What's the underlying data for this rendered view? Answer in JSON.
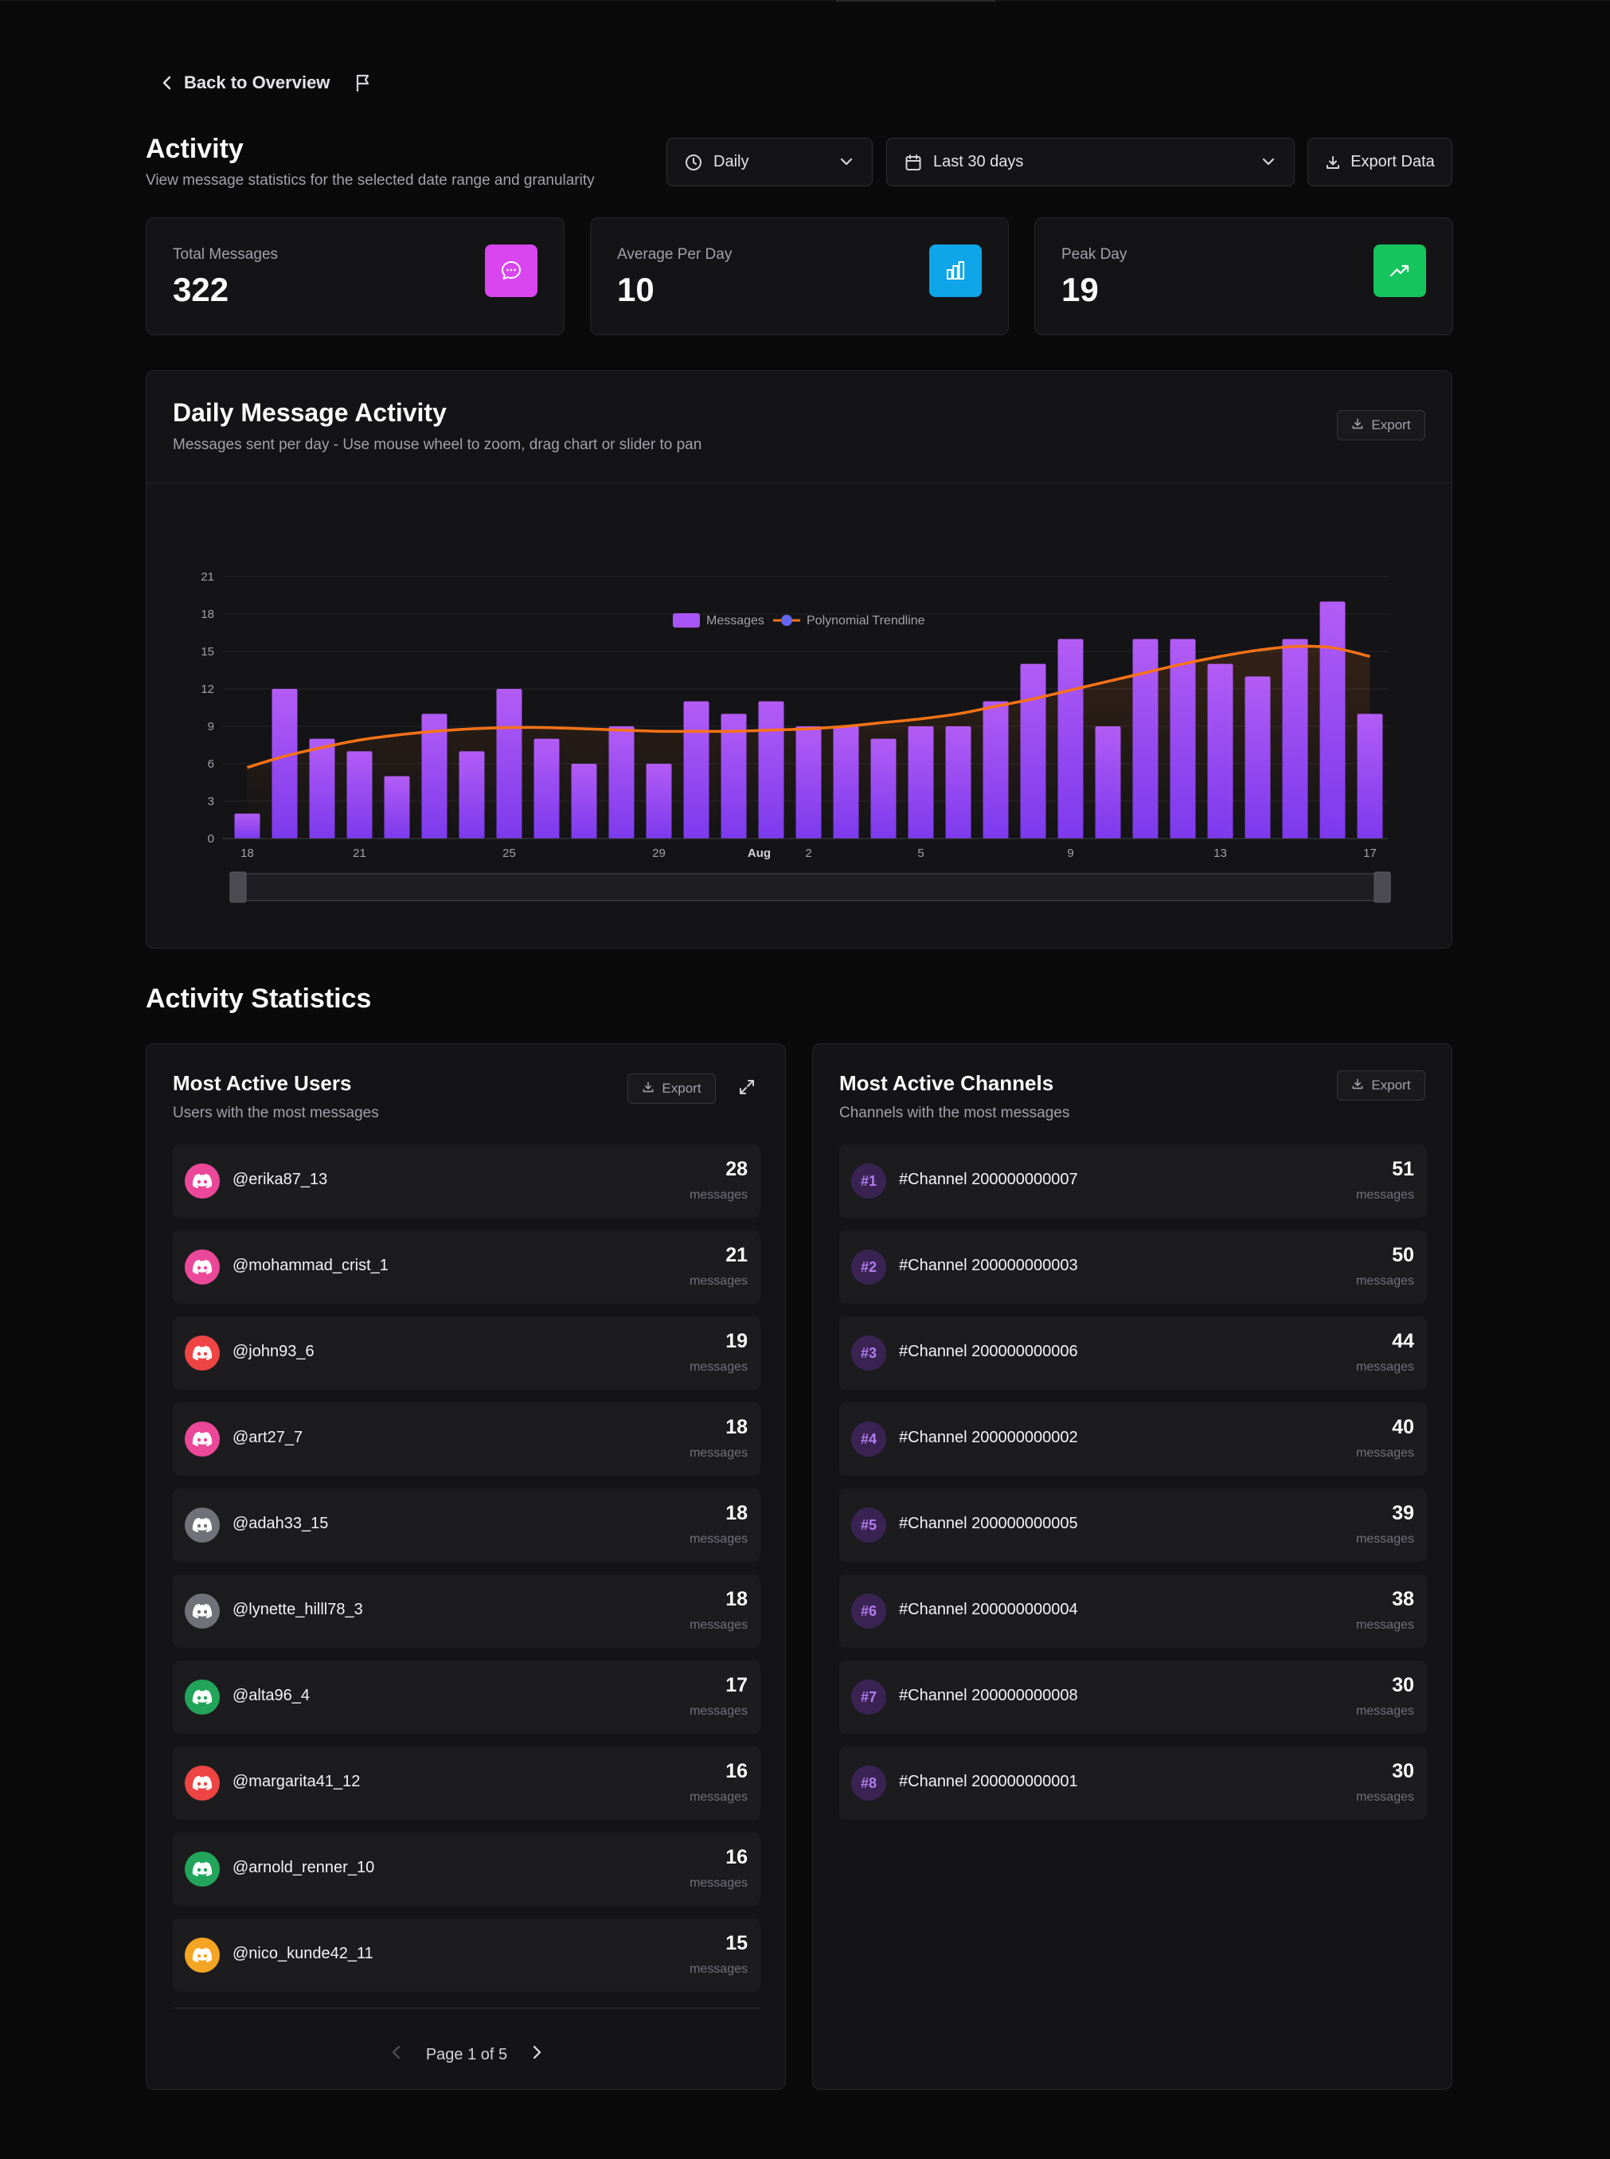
{
  "nav": {
    "back_label": "Back to Overview"
  },
  "header": {
    "title": "Activity",
    "subtitle": "View message statistics for the selected date range and granularity",
    "granularity": "Daily",
    "range": "Last 30 days",
    "export_label": "Export Data"
  },
  "stats": [
    {
      "label": "Total Messages",
      "value": "322",
      "icon": "message-icon",
      "color": "#d946ef"
    },
    {
      "label": "Average Per Day",
      "value": "10",
      "icon": "bar-chart-icon",
      "color": "#0ea5e9"
    },
    {
      "label": "Peak Day",
      "value": "19",
      "icon": "trending-up-icon",
      "color": "#16c45e"
    }
  ],
  "chart_card": {
    "title": "Daily Message Activity",
    "subtitle": "Messages sent per day - Use mouse wheel to zoom, drag chart or slider to pan",
    "export_label": "Export"
  },
  "chart_data": {
    "type": "bar",
    "categories": [
      "18",
      "19",
      "20",
      "21",
      "22",
      "23",
      "24",
      "25",
      "26",
      "27",
      "28",
      "29",
      "30",
      "31",
      "Aug",
      "2",
      "3",
      "4",
      "5",
      "6",
      "7",
      "8",
      "9",
      "10",
      "11",
      "12",
      "13",
      "14",
      "15",
      "16",
      "17"
    ],
    "tick_labels": [
      "18",
      "21",
      "25",
      "29",
      "Aug",
      "2",
      "5",
      "9",
      "13",
      "17"
    ],
    "series": [
      {
        "name": "Messages",
        "type": "bar",
        "color": "#a855f7",
        "values": [
          2,
          12,
          8,
          7,
          5,
          10,
          7,
          12,
          8,
          6,
          9,
          6,
          11,
          10,
          11,
          9,
          9,
          8,
          9,
          9,
          11,
          14,
          16,
          9,
          16,
          16,
          14,
          13,
          16,
          19,
          10
        ]
      },
      {
        "name": "Polynomial Trendline",
        "type": "line",
        "color": "#f97316",
        "values": [
          5.7,
          6.6,
          7.3,
          7.9,
          8.3,
          8.6,
          8.8,
          8.9,
          8.9,
          8.8,
          8.7,
          8.6,
          8.6,
          8.6,
          8.7,
          8.8,
          9.0,
          9.3,
          9.6,
          10.0,
          10.6,
          11.2,
          11.9,
          12.6,
          13.3,
          14.0,
          14.6,
          15.1,
          15.4,
          15.3,
          14.6
        ]
      }
    ],
    "ylim": [
      0,
      21
    ],
    "yticks": [
      0,
      3,
      6,
      9,
      12,
      15,
      18,
      21
    ],
    "legend": "top-center",
    "grid": true
  },
  "stats_section": {
    "title": "Activity Statistics"
  },
  "users_panel": {
    "title": "Most Active Users",
    "subtitle": "Users with the most messages",
    "export_label": "Export",
    "unit": "messages",
    "pager": "Page 1 of 5",
    "items": [
      {
        "name": "@erika87_13",
        "count": "28",
        "color": "#ec4899"
      },
      {
        "name": "@mohammad_crist_1",
        "count": "21",
        "color": "#ec4899"
      },
      {
        "name": "@john93_6",
        "count": "19",
        "color": "#ef4444"
      },
      {
        "name": "@art27_7",
        "count": "18",
        "color": "#ec4899"
      },
      {
        "name": "@adah33_15",
        "count": "18",
        "color": "#71717a"
      },
      {
        "name": "@lynette_hilll78_3",
        "count": "18",
        "color": "#71717a"
      },
      {
        "name": "@alta96_4",
        "count": "17",
        "color": "#22a55a"
      },
      {
        "name": "@margarita41_12",
        "count": "16",
        "color": "#ef4444"
      },
      {
        "name": "@arnold_renner_10",
        "count": "16",
        "color": "#22a55a"
      },
      {
        "name": "@nico_kunde42_11",
        "count": "15",
        "color": "#f5a524"
      }
    ]
  },
  "channels_panel": {
    "title": "Most Active Channels",
    "subtitle": "Channels with the most messages",
    "export_label": "Export",
    "unit": "messages",
    "items": [
      {
        "rank": "#1",
        "name": "#Channel 200000000007",
        "count": "51"
      },
      {
        "rank": "#2",
        "name": "#Channel 200000000003",
        "count": "50"
      },
      {
        "rank": "#3",
        "name": "#Channel 200000000006",
        "count": "44"
      },
      {
        "rank": "#4",
        "name": "#Channel 200000000002",
        "count": "40"
      },
      {
        "rank": "#5",
        "name": "#Channel 200000000005",
        "count": "39"
      },
      {
        "rank": "#6",
        "name": "#Channel 200000000004",
        "count": "38"
      },
      {
        "rank": "#7",
        "name": "#Channel 200000000008",
        "count": "30"
      },
      {
        "rank": "#8",
        "name": "#Channel 200000000001",
        "count": "30"
      }
    ]
  }
}
